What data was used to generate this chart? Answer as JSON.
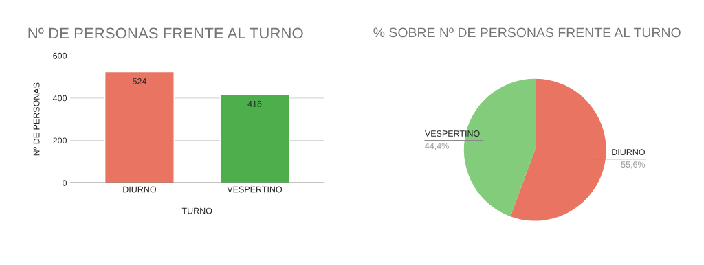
{
  "chart_data": [
    {
      "type": "bar",
      "title": "Nº DE PERSONAS FRENTE AL TURNO",
      "xlabel": "TURNO",
      "ylabel": "Nº DE PERSONAS",
      "categories": [
        "DIURNO",
        "VESPERTINO"
      ],
      "values": [
        524,
        418
      ],
      "colors": [
        "#ea7462",
        "#4caf4b"
      ],
      "ylim": [
        0,
        600
      ],
      "yticks": [
        0,
        200,
        400,
        600
      ],
      "grid": "y",
      "data_labels": true
    },
    {
      "type": "pie",
      "title": "% SOBRE Nº DE PERSONAS FRENTE AL TURNO",
      "categories": [
        "DIURNO",
        "VESPERTINO"
      ],
      "values": [
        55.6,
        44.4
      ],
      "value_labels": [
        "55,6%",
        "44,4%"
      ],
      "colors": [
        "#ea7462",
        "#82cc7c"
      ]
    }
  ]
}
